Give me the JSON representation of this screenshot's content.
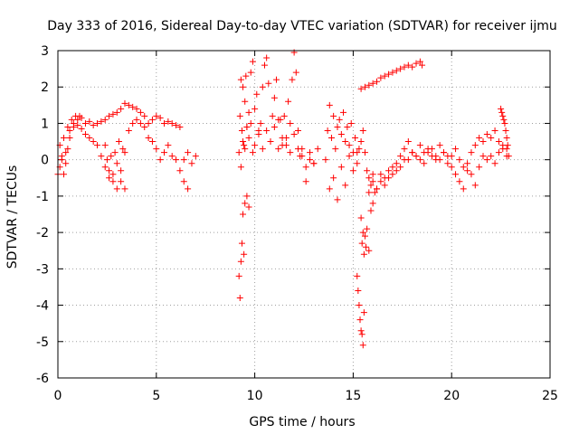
{
  "chart_data": {
    "type": "scatter",
    "title": "Day 333 of 2016, Sidereal Day-to-day VTEC variation (SDTVAR) for receiver ijmu",
    "xlabel": "GPS time / hours",
    "ylabel": "SDTVAR / TECUs",
    "xlim": [
      0,
      25
    ],
    "ylim": [
      -6,
      3
    ],
    "x_ticks": [
      0,
      5,
      10,
      15,
      20,
      25
    ],
    "y_ticks": [
      -6,
      -5,
      -4,
      -3,
      -2,
      -1,
      0,
      1,
      2,
      3
    ],
    "grid": true,
    "marker": "+",
    "color": "#ff0000",
    "series": [
      {
        "name": "SDTVAR",
        "x": [
          0.0,
          0.1,
          0.2,
          0.3,
          0.4,
          0.5,
          0.6,
          0.7,
          0.8,
          0.9,
          1.0,
          1.1,
          1.2,
          1.4,
          1.6,
          1.8,
          2.0,
          2.2,
          2.4,
          2.6,
          2.8,
          3.0,
          3.2,
          3.4,
          3.6,
          3.8,
          4.0,
          4.2,
          4.4,
          4.6,
          4.8,
          5.0,
          5.2,
          5.4,
          5.6,
          5.8,
          6.0,
          6.2,
          6.4,
          6.6,
          6.8,
          7.0,
          0.1,
          0.2,
          0.3,
          0.4,
          0.5,
          0.6,
          0.8,
          1.0,
          1.2,
          1.4,
          1.6,
          1.8,
          2.0,
          2.2,
          2.4,
          2.6,
          2.8,
          3.0,
          3.2,
          3.4,
          3.6,
          3.8,
          4.0,
          4.2,
          4.4,
          4.6,
          4.8,
          5.0,
          5.2,
          5.4,
          5.6,
          5.8,
          6.0,
          6.2,
          6.4,
          6.6,
          2.4,
          2.5,
          2.6,
          2.7,
          2.8,
          2.9,
          3.0,
          3.1,
          3.2,
          3.3,
          3.4,
          9.2,
          9.25,
          9.3,
          9.35,
          9.4,
          9.45,
          9.5,
          9.55,
          9.6,
          9.7,
          9.8,
          9.9,
          10.0,
          10.1,
          10.2,
          10.3,
          10.4,
          10.5,
          10.6,
          10.7,
          10.8,
          10.9,
          11.0,
          11.1,
          11.2,
          11.3,
          11.4,
          11.5,
          11.6,
          11.7,
          11.8,
          11.9,
          12.0,
          12.1,
          12.2,
          12.3,
          12.4,
          12.6,
          12.8,
          13.0,
          13.2,
          9.2,
          9.25,
          9.3,
          9.35,
          9.4,
          9.45,
          9.5,
          9.6,
          9.7,
          9.3,
          9.4,
          9.5,
          9.6,
          9.7,
          9.8,
          9.9,
          10.0,
          10.2,
          10.4,
          10.6,
          10.8,
          11.0,
          11.2,
          11.4,
          11.6,
          11.8,
          12.0,
          12.2,
          12.4,
          12.6,
          12.8,
          13.0,
          13.6,
          13.7,
          13.8,
          13.9,
          14.0,
          14.1,
          14.2,
          14.3,
          14.4,
          14.5,
          14.6,
          14.7,
          14.8,
          14.9,
          15.0,
          15.1,
          15.2,
          15.3,
          15.4,
          15.5,
          15.6,
          15.7,
          15.8,
          15.9,
          16.0,
          16.1,
          13.8,
          14.0,
          14.2,
          14.4,
          14.6,
          14.8,
          15.0,
          15.2,
          15.4,
          15.45,
          15.5,
          15.55,
          15.6,
          15.65,
          15.7,
          15.8,
          15.9,
          16.0,
          15.2,
          15.25,
          15.3,
          15.35,
          15.4,
          15.45,
          15.5,
          15.55,
          15.4,
          15.6,
          15.8,
          16.0,
          16.2,
          16.4,
          16.6,
          16.8,
          17.0,
          17.2,
          17.4,
          17.6,
          17.8,
          18.0,
          18.2,
          18.4,
          18.5,
          15.8,
          16.0,
          16.2,
          16.4,
          16.6,
          16.8,
          17.0,
          17.2,
          17.4,
          17.6,
          17.8,
          18.0,
          18.2,
          18.4,
          18.6,
          18.8,
          19.0,
          19.2,
          19.4,
          19.6,
          19.8,
          20.0,
          20.2,
          20.4,
          20.6,
          20.8,
          21.0,
          21.2,
          21.4,
          21.6,
          21.8,
          22.0,
          22.2,
          22.4,
          22.6,
          22.8,
          22.9,
          16.2,
          16.4,
          16.6,
          16.8,
          17.0,
          17.2,
          17.4,
          17.6,
          17.8,
          18.0,
          18.2,
          18.4,
          18.6,
          18.8,
          19.0,
          19.2,
          19.4,
          19.6,
          19.8,
          20.0,
          20.2,
          20.4,
          20.6,
          20.8,
          21.0,
          21.2,
          21.4,
          21.6,
          21.8,
          22.0,
          22.2,
          22.4,
          22.6,
          22.8,
          22.5,
          22.55,
          22.6,
          22.65,
          22.7,
          22.75,
          22.8,
          22.85
        ],
        "y": [
          -0.4,
          0.4,
          0.0,
          0.6,
          0.2,
          0.9,
          0.8,
          1.1,
          1.0,
          1.2,
          1.1,
          1.2,
          1.15,
          1.0,
          1.05,
          0.95,
          1.0,
          1.05,
          1.1,
          1.2,
          1.25,
          1.3,
          1.4,
          1.55,
          1.5,
          1.45,
          1.4,
          1.3,
          1.2,
          1.0,
          1.1,
          1.2,
          1.15,
          1.0,
          1.05,
          1.0,
          0.95,
          0.9,
          0.0,
          0.2,
          -0.1,
          0.1,
          -0.2,
          0.1,
          -0.4,
          -0.1,
          0.3,
          0.6,
          0.9,
          0.95,
          0.85,
          0.7,
          0.6,
          0.5,
          0.4,
          0.1,
          -0.2,
          -0.5,
          -0.6,
          -0.8,
          -0.3,
          0.2,
          0.8,
          1.0,
          1.1,
          1.0,
          0.9,
          0.6,
          0.5,
          0.3,
          0.0,
          0.2,
          0.4,
          0.1,
          0.0,
          -0.3,
          -0.6,
          -0.8,
          0.4,
          0.0,
          -0.3,
          0.1,
          -0.4,
          0.2,
          -0.1,
          0.5,
          -0.6,
          0.3,
          -0.8,
          0.2,
          1.2,
          2.2,
          0.8,
          2.0,
          0.4,
          1.6,
          2.3,
          0.9,
          1.3,
          2.4,
          2.7,
          1.4,
          1.8,
          0.8,
          1.0,
          2.0,
          2.6,
          2.8,
          2.1,
          0.5,
          1.2,
          1.7,
          2.2,
          0.3,
          1.1,
          0.6,
          1.2,
          0.4,
          1.6,
          0.2,
          2.2,
          2.95,
          2.4,
          0.8,
          0.1,
          0.3,
          -0.6,
          0.2,
          -0.1,
          0.3,
          -3.2,
          -3.8,
          -2.8,
          -2.3,
          -1.5,
          -2.6,
          -1.2,
          -1.0,
          -1.3,
          -0.2,
          0.5,
          0.3,
          0.9,
          0.6,
          1.0,
          0.2,
          0.4,
          0.7,
          0.3,
          0.8,
          0.5,
          0.9,
          1.1,
          0.4,
          0.6,
          1.0,
          0.7,
          0.3,
          0.1,
          -0.2,
          0.0,
          -0.1,
          0.0,
          0.8,
          1.5,
          0.6,
          1.2,
          0.3,
          0.9,
          1.1,
          0.7,
          1.3,
          0.5,
          0.9,
          0.4,
          1.0,
          0.2,
          0.6,
          -0.1,
          0.3,
          0.5,
          0.8,
          0.2,
          -0.3,
          -0.5,
          -0.7,
          -0.4,
          -0.9,
          -0.8,
          -0.5,
          -1.1,
          -0.2,
          -0.7,
          0.1,
          -0.3,
          0.2,
          -1.6,
          -2.3,
          -2.0,
          -2.6,
          -2.1,
          -2.4,
          -1.9,
          -2.5,
          -1.4,
          -1.2,
          -3.2,
          -3.6,
          -4.0,
          -4.4,
          -4.7,
          -4.8,
          -5.1,
          -4.2,
          1.95,
          2.0,
          2.05,
          2.1,
          2.15,
          2.25,
          2.3,
          2.35,
          2.4,
          2.45,
          2.5,
          2.55,
          2.6,
          2.55,
          2.65,
          2.7,
          2.6,
          -0.9,
          -0.6,
          -0.8,
          -0.4,
          -0.5,
          -0.3,
          -0.2,
          -0.1,
          0.1,
          0.3,
          0.5,
          0.2,
          0.1,
          0.0,
          -0.1,
          0.2,
          0.3,
          0.1,
          0.0,
          0.2,
          0.1,
          -0.2,
          -0.4,
          -0.6,
          -0.8,
          -0.3,
          0.2,
          0.4,
          0.6,
          0.5,
          0.7,
          0.6,
          0.8,
          0.5,
          0.4,
          0.3,
          0.1,
          -0.8,
          -0.6,
          -0.7,
          -0.5,
          -0.4,
          -0.3,
          -0.2,
          0.0,
          0.0,
          0.2,
          0.1,
          0.4,
          0.2,
          0.3,
          0.1,
          0.0,
          0.4,
          0.2,
          -0.1,
          0.1,
          0.3,
          0.0,
          -0.2,
          -0.1,
          -0.4,
          -0.7,
          -0.2,
          0.1,
          0.0,
          0.1,
          -0.1,
          0.2,
          0.3,
          0.1,
          1.4,
          1.3,
          1.2,
          1.1,
          1.0,
          0.8,
          0.6,
          0.4
        ]
      }
    ]
  }
}
